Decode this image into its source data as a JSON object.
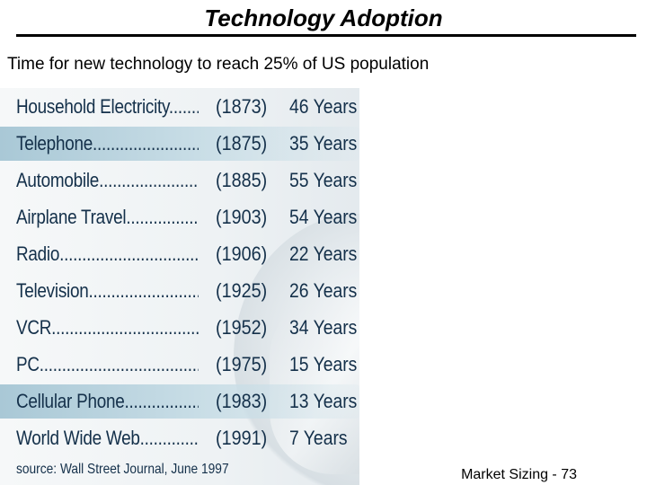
{
  "slide": {
    "title": "Technology Adoption",
    "subtitle": "Time for new technology to reach 25% of US population",
    "footer": "Market Sizing - 73"
  },
  "table": {
    "rows": [
      {
        "name": "Household Electricity............",
        "year": "(1873)",
        "years": "46 Years",
        "highlight": false
      },
      {
        "name": "Telephone................................",
        "year": "(1875)",
        "years": "35 Years",
        "highlight": true
      },
      {
        "name": "Automobile..............................",
        "year": "(1885)",
        "years": "55 Years",
        "highlight": false
      },
      {
        "name": "Airplane Travel.......................",
        "year": "(1903)",
        "years": "54 Years",
        "highlight": false
      },
      {
        "name": "Radio.........................................",
        "year": "(1906)",
        "years": "22 Years",
        "highlight": false
      },
      {
        "name": "Television................................",
        "year": "(1925)",
        "years": "26 Years",
        "highlight": false
      },
      {
        "name": "VCR...........................................",
        "year": "(1952)",
        "years": "34 Years",
        "highlight": false
      },
      {
        "name": "PC..............................................",
        "year": "(1975)",
        "years": "15 Years",
        "highlight": false
      },
      {
        "name": "Cellular Phone........................",
        "year": "(1983)",
        "years": "13 Years",
        "highlight": true
      },
      {
        "name": "World Wide Web.....................",
        "year": "(1991)",
        "years": "7  Years",
        "highlight": false
      }
    ],
    "source": "source: Wall Street Journal, June 1997"
  },
  "colors": {
    "text_blue": "#14304a",
    "highlight": "#a9c8d6"
  }
}
